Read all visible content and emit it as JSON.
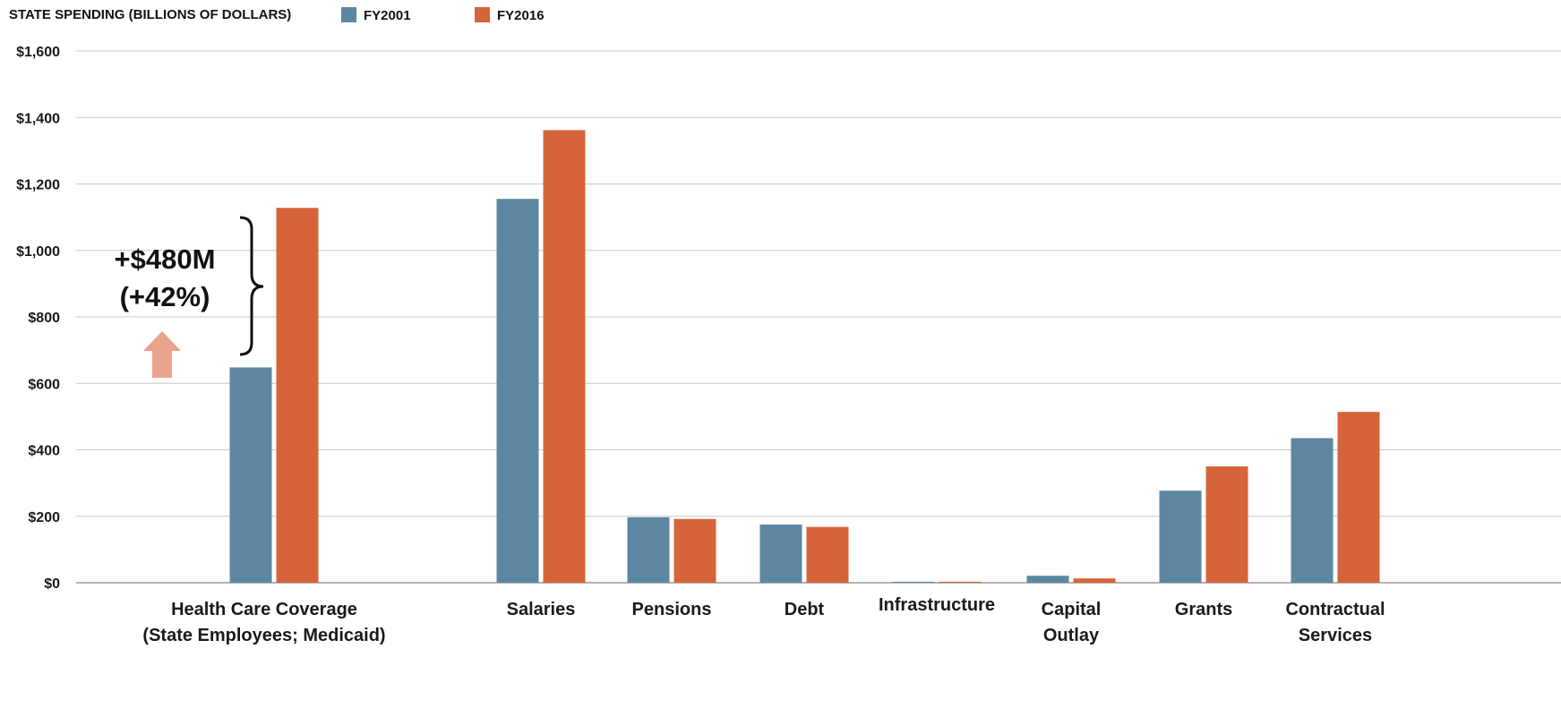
{
  "chart_data": {
    "type": "bar",
    "title": "STATE SPENDING (BILLIONS OF DOLLARS)",
    "xlabel": "",
    "ylabel": "",
    "ylim": [
      0,
      1600
    ],
    "yticks": [
      0,
      200,
      400,
      600,
      800,
      1000,
      1200,
      1400,
      1600
    ],
    "ytick_labels": [
      "$0",
      "$200",
      "$400",
      "$600",
      "$800",
      "$1,000",
      "$1,200",
      "$1,400",
      "$1,600"
    ],
    "grid": true,
    "legend_position": "top",
    "categories": [
      [
        "Health Care Coverage",
        "(State Employees; Medicaid)"
      ],
      [
        "Salaries"
      ],
      [
        "Pensions"
      ],
      [
        "Debt"
      ],
      [
        "Infrastructure"
      ],
      [
        "Capital",
        "Outlay"
      ],
      [
        "Grants"
      ],
      [
        "Contractual",
        "Services"
      ]
    ],
    "series": [
      {
        "name": "FY2001",
        "color": "#5d87a1",
        "values": [
          648,
          1155,
          197,
          175,
          3,
          21,
          277,
          435
        ]
      },
      {
        "name": "FY2016",
        "color": "#d5643b",
        "values": [
          1128,
          1362,
          192,
          168,
          3,
          13,
          350,
          514
        ]
      }
    ],
    "annotation": {
      "lines": [
        "+$480M",
        "(+42%)"
      ],
      "arrow_color": "#e9a28c"
    }
  }
}
